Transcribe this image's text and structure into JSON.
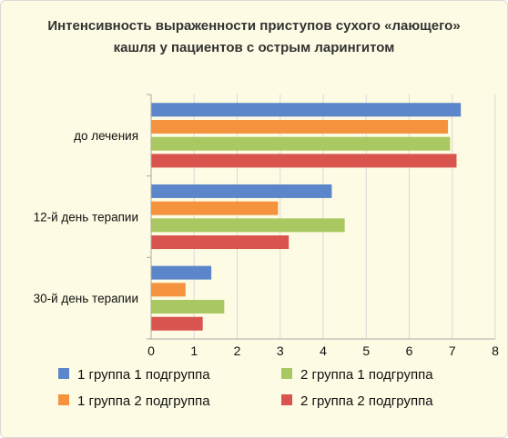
{
  "chart_data": {
    "type": "bar",
    "orientation": "horizontal",
    "title_lines": [
      "Интенсивность выраженности приступов сухого «лающего»",
      "кашля у пациентов с острым ларингитом"
    ],
    "categories": [
      "до лечения",
      "12-й день терапии",
      "30-й день терапии"
    ],
    "series": [
      {
        "name": "1 группа 1 подгруппа",
        "color": "#5b86c9",
        "values": [
          7.2,
          4.2,
          1.4
        ]
      },
      {
        "name": "1 группа 2 подгруппа",
        "color": "#f5923e",
        "values": [
          6.9,
          2.95,
          0.8
        ]
      },
      {
        "name": "2 группа 1 подгруппа",
        "color": "#a9c862",
        "values": [
          6.95,
          4.5,
          1.7
        ]
      },
      {
        "name": "2 группа 2 подгруппа",
        "color": "#d9534f",
        "values": [
          7.1,
          3.2,
          1.2
        ]
      }
    ],
    "xlim": [
      0,
      8
    ],
    "xticks": [
      "0",
      "1",
      "2",
      "3",
      "4",
      "5",
      "6",
      "7",
      "8"
    ],
    "gridlines": true,
    "legend_position": "bottom",
    "legend_order": [
      0,
      2,
      1,
      3
    ]
  }
}
